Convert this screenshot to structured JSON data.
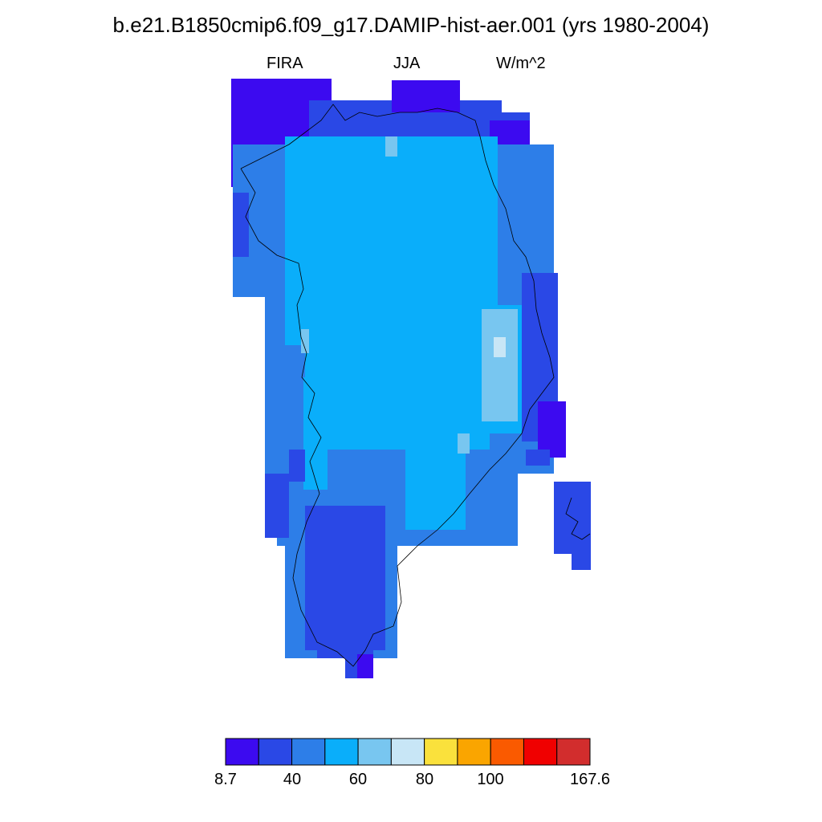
{
  "title": "b.e21.B1850cmip6.f09_g17.DAMIP-hist-aer.001 (yrs 1980-2004)",
  "subtitle": {
    "left": "FIRA",
    "center": "JJA",
    "right": "W/m^2"
  },
  "colorbar": {
    "colors": [
      "#3c0af0",
      "#2a48e6",
      "#2d7ee8",
      "#0aaefa",
      "#78c6f0",
      "#c8e6f6",
      "#fae13c",
      "#faa500",
      "#fa5a00",
      "#f00000",
      "#d22d2d"
    ],
    "tick_labels": [
      "8.7",
      "40",
      "60",
      "80",
      "100",
      "167.6"
    ]
  },
  "map_colors": {
    "c0": "#3c0af0",
    "c1": "#2a48e6",
    "c2": "#2d7ee8",
    "c3": "#0aaefa",
    "c4": "#78c6f0",
    "c5": "#c8e6f6"
  }
}
